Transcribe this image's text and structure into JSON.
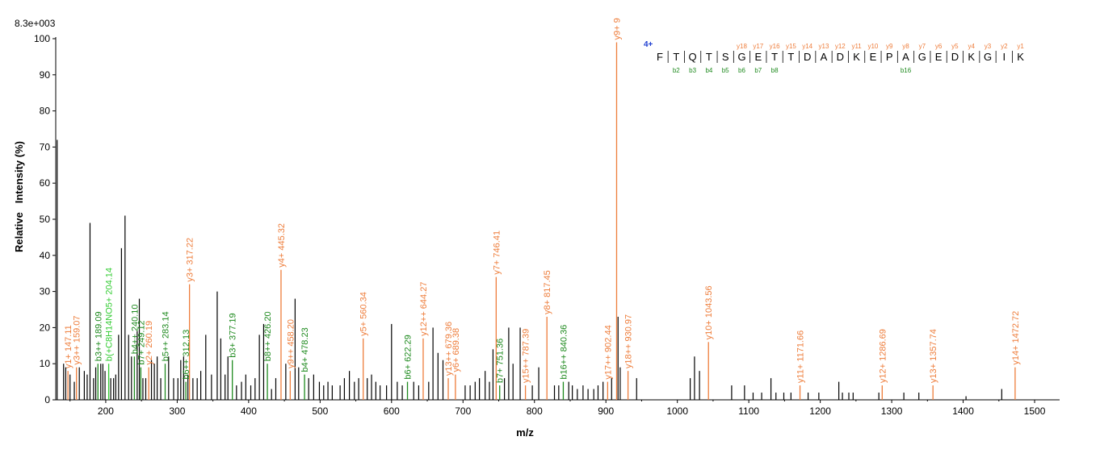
{
  "max_intensity_label": "8.3e+003",
  "charge_label": "4+",
  "colors": {
    "y_ion": "#ee7d3b",
    "b_ion": "#1e8a1e",
    "b_ion_light": "#33cc33",
    "charge": "#1f3fd1",
    "axis": "#000000",
    "peak": "#000000"
  },
  "chart_data": {
    "type": "bar",
    "title": "",
    "xlabel": "m/z",
    "ylabel": "Relative   Intensity (%)",
    "xlim": [
      130,
      1535
    ],
    "ylim": [
      0,
      100
    ],
    "x_ticks": [
      200,
      300,
      400,
      500,
      600,
      700,
      800,
      900,
      1000,
      1100,
      1200,
      1300,
      1400,
      1500
    ],
    "y_ticks": [
      0,
      10,
      20,
      30,
      40,
      50,
      60,
      70,
      80,
      90,
      100
    ],
    "grid": false,
    "annotated_peaks": [
      {
        "label": "y1+ 147.11",
        "mz": 147.11,
        "intensity": 8,
        "ion": "y"
      },
      {
        "label": "y3++ 159.07",
        "mz": 159.07,
        "intensity": 9,
        "ion": "y"
      },
      {
        "label": "b3++ 189.09",
        "mz": 189.09,
        "intensity": 10,
        "ion": "b"
      },
      {
        "label": "b(+C8H14NO5+ 204.14",
        "mz": 204.14,
        "intensity": 10,
        "ion": "b2"
      },
      {
        "label": "b4++ 240.10",
        "mz": 240.1,
        "intensity": 12,
        "ion": "b"
      },
      {
        "label": "b7+ 249.12",
        "mz": 249.12,
        "intensity": 9,
        "ion": "b"
      },
      {
        "label": "y2+ 260.19",
        "mz": 260.19,
        "intensity": 9,
        "ion": "y"
      },
      {
        "label": "b5++ 283.14",
        "mz": 283.14,
        "intensity": 10,
        "ion": "b"
      },
      {
        "label": "b6++ 312.13",
        "mz": 312.13,
        "intensity": 5,
        "ion": "b"
      },
      {
        "label": "y3+ 317.22",
        "mz": 317.22,
        "intensity": 32,
        "ion": "y"
      },
      {
        "label": "b3+ 377.19",
        "mz": 377.19,
        "intensity": 11,
        "ion": "b"
      },
      {
        "label": "b8++ 426.20",
        "mz": 426.2,
        "intensity": 10,
        "ion": "b"
      },
      {
        "label": "y4+ 445.32",
        "mz": 445.32,
        "intensity": 36,
        "ion": "y"
      },
      {
        "label": "y9++ 458.20",
        "mz": 458.2,
        "intensity": 8,
        "ion": "y"
      },
      {
        "label": "b4+ 478.23",
        "mz": 478.23,
        "intensity": 7,
        "ion": "b"
      },
      {
        "label": "y5+ 560.34",
        "mz": 560.34,
        "intensity": 17,
        "ion": "y"
      },
      {
        "label": "b6+ 622.29",
        "mz": 622.29,
        "intensity": 5,
        "ion": "b"
      },
      {
        "label": "y12++ 644.27",
        "mz": 644.27,
        "intensity": 17,
        "ion": "y"
      },
      {
        "label": "y13++ 679.36",
        "mz": 679.36,
        "intensity": 6,
        "ion": "y"
      },
      {
        "label": "y6+ 689.38",
        "mz": 689.38,
        "intensity": 7,
        "ion": "y"
      },
      {
        "label": "y7+ 746.41",
        "mz": 746.41,
        "intensity": 34,
        "ion": "y"
      },
      {
        "label": "b7+ 751.36",
        "mz": 751.36,
        "intensity": 4,
        "ion": "b"
      },
      {
        "label": "y15++ 787.39",
        "mz": 787.39,
        "intensity": 4,
        "ion": "y"
      },
      {
        "label": "y8+ 817.45",
        "mz": 817.45,
        "intensity": 23,
        "ion": "y"
      },
      {
        "label": "b16++ 840.36",
        "mz": 840.36,
        "intensity": 5,
        "ion": "b"
      },
      {
        "label": "y17++ 902.44",
        "mz": 902.44,
        "intensity": 5,
        "ion": "y"
      },
      {
        "label": "y9+ 9",
        "mz": 915.0,
        "intensity": 99,
        "ion": "y"
      },
      {
        "label": "y18++ 930.97",
        "mz": 930.97,
        "intensity": 8,
        "ion": "y"
      },
      {
        "label": "y10+ 1043.56",
        "mz": 1043.56,
        "intensity": 16,
        "ion": "y"
      },
      {
        "label": "y11+ 1171.66",
        "mz": 1171.66,
        "intensity": 4,
        "ion": "y"
      },
      {
        "label": "y12+ 1286.69",
        "mz": 1286.69,
        "intensity": 4,
        "ion": "y"
      },
      {
        "label": "y13+ 1357.74",
        "mz": 1357.74,
        "intensity": 4,
        "ion": "y"
      },
      {
        "label": "y14+ 1472.72",
        "mz": 1472.72,
        "intensity": 9,
        "ion": "y"
      }
    ],
    "unlabeled_peaks": [
      [
        132,
        72
      ],
      [
        141,
        10
      ],
      [
        144,
        9
      ],
      [
        150,
        7
      ],
      [
        156,
        5
      ],
      [
        163,
        9
      ],
      [
        170,
        8
      ],
      [
        174,
        7
      ],
      [
        178,
        49
      ],
      [
        183,
        6
      ],
      [
        186,
        9
      ],
      [
        193,
        10
      ],
      [
        196,
        10
      ],
      [
        199,
        8
      ],
      [
        207,
        6
      ],
      [
        211,
        6
      ],
      [
        214,
        7
      ],
      [
        218,
        18
      ],
      [
        222,
        42
      ],
      [
        227,
        51
      ],
      [
        232,
        18
      ],
      [
        236,
        12
      ],
      [
        244,
        19
      ],
      [
        247,
        28
      ],
      [
        252,
        6
      ],
      [
        256,
        6
      ],
      [
        264,
        11
      ],
      [
        268,
        10
      ],
      [
        272,
        12
      ],
      [
        277,
        6
      ],
      [
        288,
        12
      ],
      [
        295,
        6
      ],
      [
        301,
        6
      ],
      [
        305,
        11
      ],
      [
        309,
        12
      ],
      [
        315,
        7
      ],
      [
        322,
        6
      ],
      [
        328,
        6
      ],
      [
        333,
        8
      ],
      [
        340,
        18
      ],
      [
        348,
        7
      ],
      [
        356,
        30
      ],
      [
        361,
        17
      ],
      [
        367,
        7
      ],
      [
        371,
        12
      ],
      [
        383,
        4
      ],
      [
        390,
        5
      ],
      [
        396,
        7
      ],
      [
        403,
        4
      ],
      [
        409,
        6
      ],
      [
        415,
        18
      ],
      [
        421,
        21
      ],
      [
        432,
        3
      ],
      [
        438,
        6
      ],
      [
        452,
        10
      ],
      [
        465,
        28
      ],
      [
        470,
        9
      ],
      [
        484,
        6
      ],
      [
        491,
        7
      ],
      [
        499,
        5
      ],
      [
        505,
        4
      ],
      [
        511,
        5
      ],
      [
        517,
        4
      ],
      [
        528,
        4
      ],
      [
        534,
        6
      ],
      [
        541,
        8
      ],
      [
        548,
        5
      ],
      [
        554,
        6
      ],
      [
        566,
        6
      ],
      [
        572,
        7
      ],
      [
        578,
        5
      ],
      [
        584,
        4
      ],
      [
        593,
        4
      ],
      [
        600,
        21
      ],
      [
        608,
        5
      ],
      [
        615,
        4
      ],
      [
        631,
        5
      ],
      [
        638,
        4
      ],
      [
        652,
        5
      ],
      [
        658,
        20
      ],
      [
        665,
        13
      ],
      [
        672,
        11
      ],
      [
        703,
        4
      ],
      [
        710,
        4
      ],
      [
        717,
        5
      ],
      [
        723,
        6
      ],
      [
        731,
        8
      ],
      [
        737,
        5
      ],
      [
        742,
        14
      ],
      [
        758,
        6
      ],
      [
        764,
        20
      ],
      [
        770,
        10
      ],
      [
        780,
        20
      ],
      [
        797,
        4
      ],
      [
        806,
        9
      ],
      [
        828,
        4
      ],
      [
        834,
        4
      ],
      [
        848,
        5
      ],
      [
        853,
        4
      ],
      [
        860,
        3
      ],
      [
        868,
        4
      ],
      [
        875,
        3
      ],
      [
        883,
        3
      ],
      [
        889,
        4
      ],
      [
        896,
        5
      ],
      [
        908,
        6
      ],
      [
        917,
        23
      ],
      [
        920,
        9
      ],
      [
        943,
        6
      ],
      [
        1018,
        6
      ],
      [
        1024,
        12
      ],
      [
        1031,
        8
      ],
      [
        1076,
        4
      ],
      [
        1094,
        4
      ],
      [
        1106,
        2
      ],
      [
        1118,
        2
      ],
      [
        1131,
        6
      ],
      [
        1138,
        2
      ],
      [
        1149,
        2
      ],
      [
        1159,
        2
      ],
      [
        1183,
        2
      ],
      [
        1198,
        2
      ],
      [
        1226,
        5
      ],
      [
        1231,
        2
      ],
      [
        1240,
        2
      ],
      [
        1246,
        2
      ],
      [
        1282,
        2
      ],
      [
        1317,
        2
      ],
      [
        1338,
        2
      ],
      [
        1404,
        1
      ],
      [
        1454,
        3
      ]
    ]
  },
  "sequence": {
    "residues": [
      "F",
      "T",
      "Q",
      "T",
      "S",
      "G",
      "E",
      "T",
      "T",
      "D",
      "A",
      "D",
      "K",
      "E",
      "P",
      "A",
      "G",
      "E",
      "D",
      "K",
      "G",
      "I",
      "K"
    ],
    "y_labels": [
      "y18",
      "y17",
      "y16",
      "y15",
      "y14",
      "y13",
      "y12",
      "y11",
      "y10",
      "y9",
      "y8",
      "y7",
      "y6",
      "y5",
      "y4",
      "y3",
      "y2",
      "y1"
    ],
    "b_labels": [
      "b2",
      "b3",
      "b4",
      "b5",
      "b6",
      "b7",
      "b8",
      "b16"
    ]
  }
}
